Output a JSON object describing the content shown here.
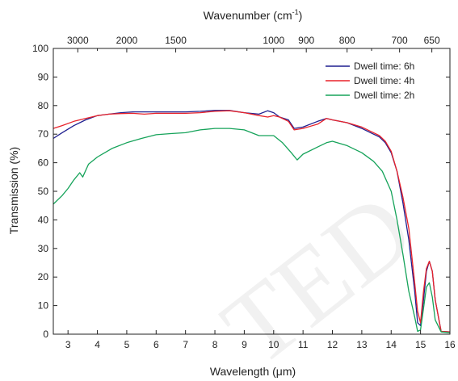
{
  "chart_data": {
    "type": "line",
    "xlabel": "Wavelength (μm)",
    "ylabel": "Transmission (%)",
    "top_axis": {
      "label_prefix": "Wavenumber (cm",
      "label_sup": "-1",
      "label_suffix": ")",
      "tick_wavenumbers": [
        3000,
        2000,
        1500,
        1000,
        900,
        800,
        700,
        650
      ],
      "tick_labels": [
        "3000",
        "2000",
        "1500",
        "1000",
        "900",
        "800",
        "700",
        "650"
      ],
      "minor_wavenumbers": [
        2500,
        1200,
        1100,
        750
      ]
    },
    "xlim": [
      2.5,
      16
    ],
    "ylim": [
      0,
      100
    ],
    "x_ticks": [
      3,
      4,
      5,
      6,
      7,
      8,
      9,
      10,
      11,
      12,
      13,
      14,
      15,
      16
    ],
    "x_tick_labels": [
      "3",
      "4",
      "5",
      "6",
      "7",
      "8",
      "9",
      "10",
      "11",
      "12",
      "13",
      "14",
      "15",
      "16"
    ],
    "y_ticks": [
      0,
      10,
      20,
      30,
      40,
      50,
      60,
      70,
      80,
      90,
      100
    ],
    "y_tick_labels": [
      "0",
      "10",
      "20",
      "30",
      "40",
      "50",
      "60",
      "70",
      "80",
      "90",
      "100"
    ],
    "grid": false,
    "legend_position": "top-right",
    "series": [
      {
        "name": "Dwell time: 6h",
        "color": "#1f1f8f",
        "x": [
          2.5,
          2.8,
          3.2,
          3.6,
          4.0,
          4.4,
          4.8,
          5.2,
          5.6,
          6.0,
          6.5,
          7.0,
          7.5,
          8.0,
          8.5,
          9.0,
          9.5,
          9.8,
          10.0,
          10.2,
          10.5,
          10.7,
          11.0,
          11.5,
          11.8,
          12.0,
          12.5,
          13.0,
          13.3,
          13.6,
          13.8,
          14.0,
          14.2,
          14.4,
          14.6,
          14.8,
          14.9,
          15.0,
          15.1,
          15.2,
          15.3,
          15.4,
          15.5,
          15.7,
          16.0
        ],
        "y": [
          68.5,
          70.5,
          73.0,
          75.0,
          76.5,
          77.0,
          77.5,
          77.8,
          77.8,
          77.8,
          77.8,
          77.8,
          78.0,
          78.3,
          78.3,
          77.5,
          77.0,
          78.2,
          77.5,
          76.0,
          75.0,
          72.0,
          72.5,
          74.5,
          75.5,
          75.0,
          74.0,
          72.0,
          70.5,
          69.0,
          67.0,
          63.5,
          57.0,
          46.0,
          33.0,
          15.0,
          4.0,
          3.0,
          12.0,
          22.0,
          25.5,
          22.0,
          12.0,
          1.0,
          0.8
        ]
      },
      {
        "name": "Dwell time: 4h",
        "color": "#e8222a",
        "x": [
          2.5,
          2.8,
          3.2,
          3.6,
          4.0,
          4.4,
          4.8,
          5.2,
          5.6,
          6.0,
          6.5,
          7.0,
          7.5,
          8.0,
          8.5,
          9.0,
          9.5,
          9.8,
          10.0,
          10.2,
          10.5,
          10.7,
          11.0,
          11.5,
          11.8,
          12.0,
          12.5,
          13.0,
          13.3,
          13.6,
          13.8,
          14.0,
          14.2,
          14.4,
          14.6,
          14.8,
          14.9,
          15.0,
          15.1,
          15.2,
          15.3,
          15.4,
          15.5,
          15.7,
          16.0
        ],
        "y": [
          72.0,
          73.0,
          74.5,
          75.5,
          76.5,
          77.0,
          77.2,
          77.3,
          77.0,
          77.3,
          77.3,
          77.3,
          77.5,
          78.0,
          78.2,
          77.5,
          76.5,
          76.0,
          76.5,
          76.0,
          74.5,
          71.5,
          72.0,
          73.5,
          75.5,
          75.0,
          74.0,
          72.5,
          71.0,
          69.5,
          67.5,
          64.0,
          57.0,
          48.0,
          37.0,
          18.0,
          8.0,
          4.0,
          15.0,
          23.0,
          25.5,
          22.0,
          12.0,
          1.0,
          0.8
        ]
      },
      {
        "name": "Dwell time: 2h",
        "color": "#16a35a",
        "x": [
          2.5,
          2.8,
          3.0,
          3.2,
          3.4,
          3.5,
          3.7,
          4.0,
          4.5,
          5.0,
          5.5,
          6.0,
          6.5,
          7.0,
          7.5,
          8.0,
          8.5,
          9.0,
          9.5,
          10.0,
          10.3,
          10.6,
          10.8,
          11.0,
          11.5,
          11.8,
          12.0,
          12.5,
          13.0,
          13.4,
          13.7,
          14.0,
          14.2,
          14.4,
          14.6,
          14.8,
          14.9,
          15.0,
          15.1,
          15.2,
          15.3,
          15.4,
          15.5,
          15.7,
          16.0
        ],
        "y": [
          45.5,
          48.5,
          51.0,
          54.0,
          56.5,
          55.0,
          59.5,
          62.0,
          65.0,
          67.0,
          68.5,
          69.8,
          70.2,
          70.5,
          71.5,
          72.0,
          72.0,
          71.5,
          69.5,
          69.5,
          67.0,
          63.5,
          61.0,
          63.0,
          65.5,
          67.0,
          67.5,
          66.0,
          63.5,
          60.5,
          57.0,
          50.0,
          40.0,
          28.0,
          15.0,
          6.0,
          1.0,
          1.5,
          9.0,
          16.5,
          18.0,
          13.0,
          5.0,
          0.8,
          0.5
        ]
      }
    ]
  }
}
